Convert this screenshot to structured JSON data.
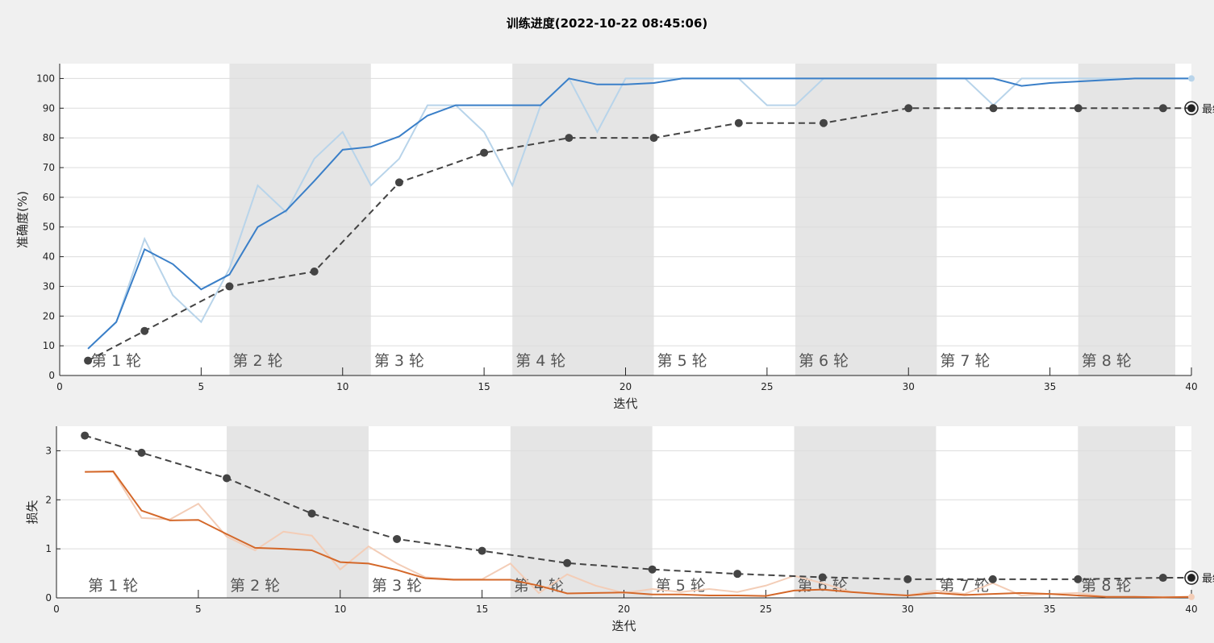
{
  "title": "训练进度(2022-10-22 08:45:06)",
  "colors": {
    "background": "#f0f0f0",
    "plot_bg": "#ffffff",
    "epoch_shade": "#e5e5e5",
    "accuracy_smoothed": "#3a7fc8",
    "accuracy_raw": "#b8d4ea",
    "loss_smoothed": "#d4682a",
    "loss_raw": "#f3cdb7",
    "validation": "#444444",
    "grid": "#dcdcdc"
  },
  "epoch_label_prefix": "第",
  "epoch_label_suffix": "轮",
  "final_label": "最终",
  "chart_data": [
    {
      "type": "line",
      "xlabel": "迭代",
      "ylabel": "准确度(%)",
      "xlim": [
        0,
        40
      ],
      "ylim": [
        0,
        105
      ],
      "xticks": [
        0,
        5,
        10,
        15,
        20,
        25,
        30,
        35,
        40
      ],
      "yticks": [
        0,
        10,
        20,
        30,
        40,
        50,
        60,
        70,
        80,
        90,
        100
      ],
      "epochs": [
        {
          "label": "第 1 轮",
          "start": 1,
          "end": 6,
          "shaded": false
        },
        {
          "label": "第 2 轮",
          "start": 6,
          "end": 11,
          "shaded": true
        },
        {
          "label": "第 3 轮",
          "start": 11,
          "end": 16,
          "shaded": false
        },
        {
          "label": "第 4 轮",
          "start": 16,
          "end": 21,
          "shaded": true
        },
        {
          "label": "第 5 轮",
          "start": 21,
          "end": 26,
          "shaded": false
        },
        {
          "label": "第 6 轮",
          "start": 26,
          "end": 31,
          "shaded": true
        },
        {
          "label": "第 7 轮",
          "start": 31,
          "end": 36,
          "shaded": false
        },
        {
          "label": "第 8 轮",
          "start": 36,
          "end": 41,
          "shaded": true
        }
      ],
      "series": [
        {
          "role": "raw",
          "x": [
            1,
            2,
            3,
            4,
            5,
            6,
            7,
            8,
            9,
            10,
            11,
            12,
            13,
            14,
            15,
            16,
            17,
            18,
            19,
            20,
            21,
            22,
            23,
            24,
            25,
            26,
            27,
            28,
            29,
            30,
            31,
            32,
            33,
            34,
            35,
            36,
            37,
            38,
            39,
            40
          ],
          "y": [
            9,
            18,
            46,
            27,
            18,
            36,
            64,
            55,
            73,
            82,
            64,
            73,
            91,
            91,
            82,
            64,
            91,
            100,
            82,
            100,
            100,
            100,
            100,
            100,
            91,
            91,
            100,
            100,
            100,
            100,
            100,
            100,
            91,
            100,
            100,
            100,
            100,
            100,
            100,
            100
          ]
        },
        {
          "role": "smoothed",
          "x": [
            1,
            2,
            3,
            4,
            5,
            6,
            7,
            8,
            9,
            10,
            11,
            12,
            13,
            14,
            15,
            16,
            17,
            18,
            19,
            20,
            21,
            22,
            23,
            24,
            25,
            26,
            27,
            28,
            29,
            30,
            31,
            32,
            33,
            34,
            35,
            36,
            37,
            38,
            39,
            40
          ],
          "y": [
            9,
            18,
            42.5,
            37.5,
            29,
            34,
            50,
            55.5,
            65.5,
            76,
            77,
            80.5,
            87.5,
            91,
            91,
            91,
            91,
            100,
            98,
            98,
            98.5,
            100,
            100,
            100,
            100,
            100,
            100,
            100,
            100,
            100,
            100,
            100,
            100,
            97.5,
            98.5,
            99,
            99.5,
            100,
            100,
            100
          ]
        },
        {
          "role": "validation",
          "x": [
            1,
            3,
            6,
            9,
            12,
            15,
            18,
            21,
            24,
            27,
            30,
            33,
            36,
            39,
            40
          ],
          "y": [
            5,
            15,
            30,
            35,
            65,
            75,
            80,
            80,
            85,
            85,
            90,
            90,
            90,
            90,
            90
          ]
        }
      ]
    },
    {
      "type": "line",
      "xlabel": "迭代",
      "ylabel": "损失",
      "xlim": [
        0,
        40
      ],
      "ylim": [
        0,
        3.5
      ],
      "xticks": [
        0,
        5,
        10,
        15,
        20,
        25,
        30,
        35,
        40
      ],
      "yticks": [
        0,
        1,
        2,
        3
      ],
      "epochs": [
        {
          "label": "第 1 轮",
          "start": 1,
          "end": 6,
          "shaded": false
        },
        {
          "label": "第 2 轮",
          "start": 6,
          "end": 11,
          "shaded": true
        },
        {
          "label": "第 3 轮",
          "start": 11,
          "end": 16,
          "shaded": false
        },
        {
          "label": "第 4 轮",
          "start": 16,
          "end": 21,
          "shaded": true
        },
        {
          "label": "第 5 轮",
          "start": 21,
          "end": 26,
          "shaded": false
        },
        {
          "label": "第 6 轮",
          "start": 26,
          "end": 31,
          "shaded": true
        },
        {
          "label": "第 7 轮",
          "start": 31,
          "end": 36,
          "shaded": false
        },
        {
          "label": "第 8 轮",
          "start": 36,
          "end": 41,
          "shaded": true
        }
      ],
      "series": [
        {
          "role": "raw",
          "x": [
            1,
            2,
            3,
            4,
            5,
            6,
            7,
            8,
            9,
            10,
            11,
            12,
            13,
            14,
            15,
            16,
            17,
            18,
            19,
            20,
            21,
            22,
            23,
            24,
            25,
            26,
            27,
            28,
            29,
            30,
            31,
            32,
            33,
            34,
            35,
            36,
            37,
            38,
            39,
            40
          ],
          "y": [
            2.57,
            2.57,
            1.63,
            1.6,
            1.92,
            1.25,
            0.97,
            1.35,
            1.27,
            0.58,
            1.05,
            0.7,
            0.42,
            0.38,
            0.38,
            0.7,
            0.1,
            0.48,
            0.25,
            0.1,
            0.18,
            0.12,
            0.18,
            0.12,
            0.25,
            0.45,
            0.3,
            0.12,
            0.08,
            0.05,
            0.15,
            0.08,
            0.3,
            0.05,
            0.08,
            0.1,
            0.02,
            0.02,
            0.02,
            0.02
          ]
        },
        {
          "role": "smoothed",
          "x": [
            1,
            2,
            3,
            4,
            5,
            6,
            7,
            8,
            9,
            10,
            11,
            12,
            13,
            14,
            15,
            16,
            17,
            18,
            19,
            20,
            21,
            22,
            23,
            24,
            25,
            26,
            27,
            28,
            29,
            30,
            31,
            32,
            33,
            34,
            35,
            36,
            37,
            38,
            39,
            40
          ],
          "y": [
            2.57,
            2.58,
            1.78,
            1.58,
            1.59,
            1.3,
            1.02,
            1.0,
            0.97,
            0.73,
            0.7,
            0.57,
            0.4,
            0.37,
            0.37,
            0.37,
            0.25,
            0.09,
            0.1,
            0.11,
            0.07,
            0.07,
            0.05,
            0.05,
            0.04,
            0.15,
            0.17,
            0.12,
            0.08,
            0.05,
            0.1,
            0.06,
            0.08,
            0.1,
            0.08,
            0.05,
            0.02,
            0.02,
            0.01,
            0.02
          ]
        },
        {
          "role": "validation",
          "x": [
            1,
            3,
            6,
            9,
            12,
            15,
            18,
            21,
            24,
            27,
            30,
            33,
            36,
            39,
            40
          ],
          "y": [
            3.31,
            2.96,
            2.44,
            1.72,
            1.2,
            0.96,
            0.71,
            0.58,
            0.49,
            0.42,
            0.38,
            0.38,
            0.38,
            0.41,
            0.41
          ]
        }
      ]
    }
  ]
}
